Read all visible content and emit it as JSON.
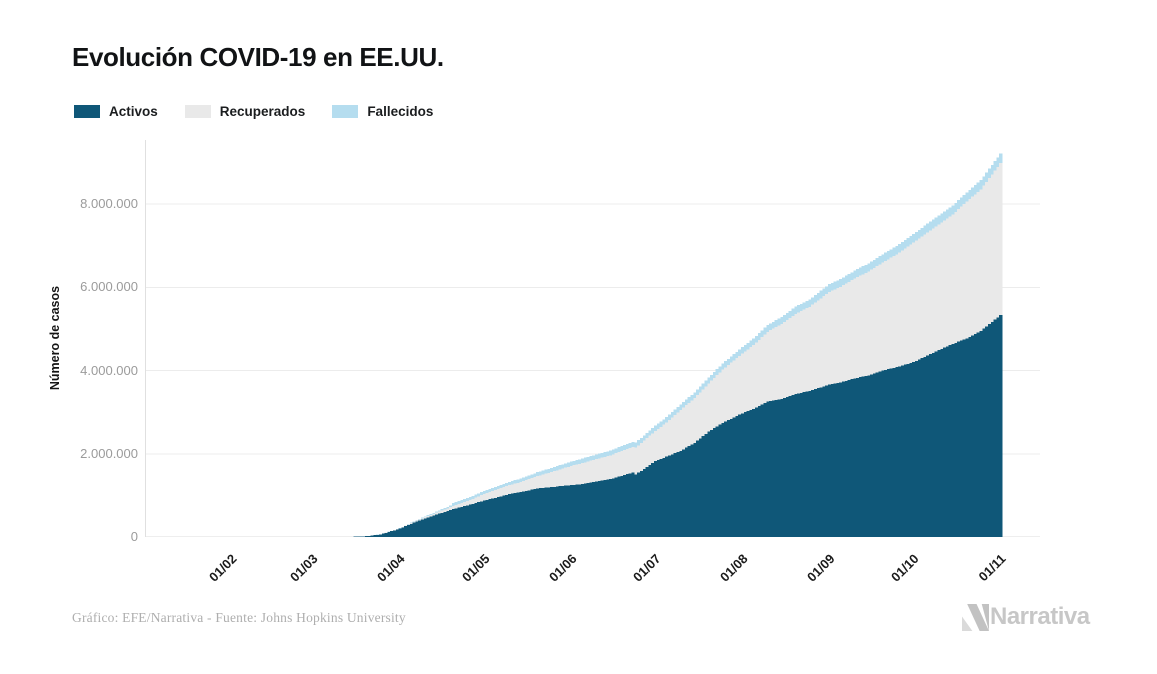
{
  "header": {
    "title": "Evolución COVID-19 en EE.UU."
  },
  "legend": {
    "items": [
      {
        "label": "Activos",
        "color": "#0f5778"
      },
      {
        "label": "Recuperados",
        "color": "#e9e9e9"
      },
      {
        "label": "Fallecidos",
        "color": "#b5ddef"
      }
    ]
  },
  "chart_data": {
    "type": "area",
    "stacked": true,
    "title": "Evolución COVID-19 en EE.UU.",
    "xlabel": "",
    "ylabel": "Número de casos",
    "ylim": [
      0,
      9540000
    ],
    "grid": true,
    "legend_position": "top-left",
    "series_names": [
      "Activos",
      "Recuperados",
      "Fallecidos"
    ],
    "colors": {
      "activos": "#0f5778",
      "recuperados": "#e9e9e9",
      "fallecidos": "#b5ddef",
      "grid": "#ececec",
      "baseline": "#dcdcdc",
      "axis_line": "#e0e0e0",
      "y_tick_text": "#9b9b9b",
      "x_tick_text": "#1b1b1b"
    },
    "y_ticks": [
      {
        "label": "0",
        "value": 0
      },
      {
        "label": "2.000.000",
        "value": 2000000
      },
      {
        "label": "4.000.000",
        "value": 4000000
      },
      {
        "label": "6.000.000",
        "value": 6000000
      },
      {
        "label": "8.000.000",
        "value": 8000000
      }
    ],
    "x_ticks": [
      {
        "label": "01/02",
        "day": 31
      },
      {
        "label": "01/03",
        "day": 60
      },
      {
        "label": "01/04",
        "day": 91
      },
      {
        "label": "01/05",
        "day": 121
      },
      {
        "label": "01/06",
        "day": 152
      },
      {
        "label": "01/07",
        "day": 182
      },
      {
        "label": "01/08",
        "day": 213
      },
      {
        "label": "01/09",
        "day": 244
      },
      {
        "label": "01/10",
        "day": 274
      },
      {
        "label": "01/11",
        "day": 305
      }
    ],
    "x_axis_start_day": 0,
    "x_axis_end_day": 305,
    "samples": [
      {
        "day": 21,
        "activos": 1,
        "recuperados": 0,
        "fallecidos": 0
      },
      {
        "day": 31,
        "activos": 8,
        "recuperados": 0,
        "fallecidos": 0
      },
      {
        "day": 60,
        "activos": 23,
        "recuperados": 7,
        "fallecidos": 1
      },
      {
        "day": 69,
        "activos": 900,
        "recuperados": 10,
        "fallecidos": 28
      },
      {
        "day": 74,
        "activos": 3100,
        "recuperados": 12,
        "fallecidos": 63
      },
      {
        "day": 79,
        "activos": 18600,
        "recuperados": 110,
        "fallecidos": 250
      },
      {
        "day": 84,
        "activos": 62000,
        "recuperados": 900,
        "fallecidos": 940
      },
      {
        "day": 91,
        "activos": 200000,
        "recuperados": 8500,
        "fallecidos": 5100
      },
      {
        "day": 95,
        "activos": 317000,
        "recuperados": 17000,
        "fallecidos": 9600
      },
      {
        "day": 100,
        "activos": 448000,
        "recuperados": 29000,
        "fallecidos": 18600
      },
      {
        "day": 105,
        "activos": 560000,
        "recuperados": 50000,
        "fallecidos": 28000
      },
      {
        "day": 110,
        "activos": 670000,
        "recuperados": 72000,
        "fallecidos": 42000
      },
      {
        "day": 115,
        "activos": 760000,
        "recuperados": 99000,
        "fallecidos": 54000
      },
      {
        "day": 121,
        "activos": 875000,
        "recuperados": 164000,
        "fallecidos": 65000
      },
      {
        "day": 125,
        "activos": 940000,
        "recuperados": 187000,
        "fallecidos": 72000
      },
      {
        "day": 130,
        "activos": 1030000,
        "recuperados": 216000,
        "fallecidos": 80000
      },
      {
        "day": 135,
        "activos": 1090000,
        "recuperados": 250000,
        "fallecidos": 87000
      },
      {
        "day": 140,
        "activos": 1170000,
        "recuperados": 294000,
        "fallecidos": 93000
      },
      {
        "day": 145,
        "activos": 1200000,
        "recuperados": 361000,
        "fallecidos": 98000
      },
      {
        "day": 152,
        "activos": 1250000,
        "recuperados": 458000,
        "fallecidos": 106000
      },
      {
        "day": 156,
        "activos": 1270000,
        "recuperados": 506000,
        "fallecidos": 109000
      },
      {
        "day": 161,
        "activos": 1330000,
        "recuperados": 540000,
        "fallecidos": 113000
      },
      {
        "day": 166,
        "activos": 1390000,
        "recuperados": 571000,
        "fallecidos": 116000
      },
      {
        "day": 171,
        "activos": 1490000,
        "recuperados": 606000,
        "fallecidos": 119000
      },
      {
        "day": 174,
        "activos": 1545000,
        "recuperados": 615000,
        "fallecidos": 121000
      },
      {
        "day": 175,
        "activos": 1500000,
        "recuperados": 645000,
        "fallecidos": 121500
      },
      {
        "day": 182,
        "activos": 1820000,
        "recuperados": 729000,
        "fallecidos": 128000
      },
      {
        "day": 186,
        "activos": 1930000,
        "recuperados": 818000,
        "fallecidos": 130000
      },
      {
        "day": 191,
        "activos": 2070000,
        "recuperados": 984000,
        "fallecidos": 134000
      },
      {
        "day": 196,
        "activos": 2260000,
        "recuperados": 1075000,
        "fallecidos": 137000
      },
      {
        "day": 201,
        "activos": 2530000,
        "recuperados": 1160000,
        "fallecidos": 141000
      },
      {
        "day": 206,
        "activos": 2740000,
        "recuperados": 1280000,
        "fallecidos": 146000
      },
      {
        "day": 213,
        "activos": 2970000,
        "recuperados": 1440000,
        "fallecidos": 153000
      },
      {
        "day": 217,
        "activos": 3080000,
        "recuperados": 1530000,
        "fallecidos": 158000
      },
      {
        "day": 222,
        "activos": 3260000,
        "recuperados": 1670000,
        "fallecidos": 163000
      },
      {
        "day": 227,
        "activos": 3320000,
        "recuperados": 1800000,
        "fallecidos": 168000
      },
      {
        "day": 232,
        "activos": 3430000,
        "recuperados": 1930000,
        "fallecidos": 173000
      },
      {
        "day": 237,
        "activos": 3510000,
        "recuperados": 2020000,
        "fallecidos": 177000
      },
      {
        "day": 244,
        "activos": 3660000,
        "recuperados": 2230000,
        "fallecidos": 184000
      },
      {
        "day": 248,
        "activos": 3710000,
        "recuperados": 2300000,
        "fallecidos": 188000
      },
      {
        "day": 253,
        "activos": 3810000,
        "recuperados": 2400000,
        "fallecidos": 191000
      },
      {
        "day": 258,
        "activos": 3880000,
        "recuperados": 2500000,
        "fallecidos": 195000
      },
      {
        "day": 263,
        "activos": 4000000,
        "recuperados": 2590000,
        "fallecidos": 199000
      },
      {
        "day": 268,
        "activos": 4080000,
        "recuperados": 2710000,
        "fallecidos": 203000
      },
      {
        "day": 274,
        "activos": 4200000,
        "recuperados": 2870000,
        "fallecidos": 208000
      },
      {
        "day": 278,
        "activos": 4330000,
        "recuperados": 2940000,
        "fallecidos": 210000
      },
      {
        "day": 283,
        "activos": 4490000,
        "recuperados": 3020000,
        "fallecidos": 214000
      },
      {
        "day": 288,
        "activos": 4640000,
        "recuperados": 3110000,
        "fallecidos": 217000
      },
      {
        "day": 293,
        "activos": 4770000,
        "recuperados": 3290000,
        "fallecidos": 221000
      },
      {
        "day": 298,
        "activos": 4950000,
        "recuperados": 3400000,
        "fallecidos": 225000
      },
      {
        "day": 305,
        "activos": 5330000,
        "recuperados": 3650000,
        "fallecidos": 231000
      }
    ]
  },
  "footer": {
    "credit": "Gráfico: EFE/Narrativa - Fuente: Johns Hopkins University",
    "logo_text": "Narrativa"
  }
}
